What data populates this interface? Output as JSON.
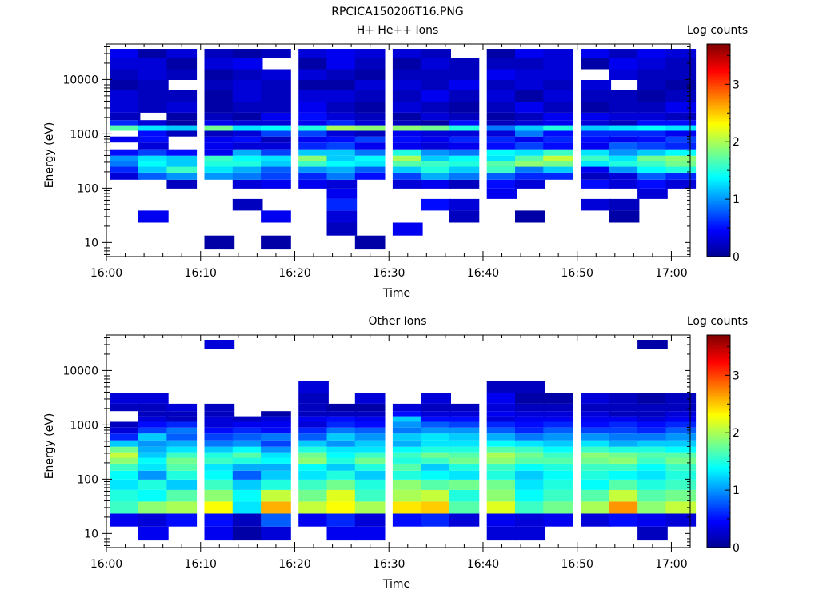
{
  "figure_title": "RPCICA150206T16.PNG",
  "colors": {
    "colormap": [
      "#00008f",
      "#0000ff",
      "#0080ff",
      "#00ffff",
      "#80ff80",
      "#ffff00",
      "#ff8000",
      "#ff0000",
      "#800000"
    ]
  },
  "chart_data": [
    {
      "type": "heatmap",
      "title": "H+ He++ Ions",
      "xlabel": "Time",
      "ylabel": "Energy (eV)",
      "x_ticks": [
        "16:00",
        "16:10",
        "16:20",
        "16:30",
        "16:40",
        "16:50",
        "17:00"
      ],
      "x_range": [
        "16:00",
        "17:02"
      ],
      "y_scale": "log",
      "y_ticks": [
        10,
        100,
        1000,
        10000
      ],
      "y_range": [
        5.5,
        45000
      ],
      "colorbar": {
        "label": "Log counts",
        "ticks": [
          0,
          1,
          2,
          3
        ],
        "range": [
          0,
          3.7
        ]
      },
      "time_bins": [
        "16:02",
        "16:05",
        "16:08",
        "16:12",
        "16:15",
        "16:18",
        "16:22",
        "16:25",
        "16:28",
        "16:32",
        "16:35",
        "16:38",
        "16:42",
        "16:45",
        "16:48",
        "16:52",
        "16:55",
        "16:58",
        "17:01"
      ],
      "energy_bins": [
        10,
        18,
        30,
        50,
        80,
        120,
        170,
        220,
        280,
        350,
        450,
        600,
        800,
        1000,
        1300,
        1600,
        2000,
        3000,
        5000,
        8000,
        12000,
        20000,
        30000
      ],
      "z": [
        [
          null,
          null,
          null,
          null,
          null,
          null,
          0.3,
          0.6,
          0.9,
          1.0,
          0.5,
          null,
          0.4,
          null,
          1.7,
          0.6,
          0.2,
          0.3,
          0.3,
          0.1,
          0.2,
          0.3,
          0.4
        ],
        [
          null,
          null,
          0.4,
          null,
          null,
          null,
          0.8,
          1.2,
          1.4,
          1.3,
          0.7,
          0.3,
          0.5,
          0.5,
          1.3,
          0.3,
          null,
          0.2,
          0.2,
          0.2,
          0.3,
          0.3,
          0.1
        ],
        [
          null,
          null,
          null,
          null,
          null,
          0.2,
          1.0,
          1.6,
          1.2,
          1.2,
          0.5,
          null,
          null,
          0.2,
          1.2,
          0.1,
          0.1,
          0.3,
          0.2,
          null,
          0.2,
          0.1,
          0.3
        ],
        [
          0.1,
          null,
          null,
          null,
          null,
          null,
          1.0,
          1.3,
          1.5,
          1.6,
          0.4,
          0.4,
          0.4,
          0.2,
          1.8,
          0.4,
          0.2,
          0.1,
          0.1,
          0.2,
          0.1,
          0.3,
          0.2
        ],
        [
          null,
          null,
          null,
          0.2,
          null,
          0.3,
          0.9,
          1.1,
          1.5,
          1.4,
          1.1,
          0.3,
          0.5,
          0.3,
          1.3,
          0.3,
          0.1,
          0.2,
          0.3,
          0.3,
          0.2,
          0.4,
          0.1
        ],
        [
          0.1,
          null,
          0.4,
          null,
          null,
          0.4,
          0.7,
          0.8,
          1.2,
          1.3,
          0.7,
          0.3,
          0.2,
          0.7,
          1.4,
          0.3,
          0.4,
          0.2,
          0.2,
          0.2,
          0.3,
          null,
          0.2
        ],
        [
          null,
          null,
          null,
          null,
          null,
          0.4,
          0.6,
          1.0,
          1.6,
          1.9,
          1.2,
          0.6,
          0.4,
          0.7,
          1.5,
          0.4,
          0.5,
          0.4,
          0.3,
          0.1,
          0.3,
          0.1,
          0.3
        ],
        [
          null,
          0.2,
          0.3,
          0.6,
          0.4,
          0.3,
          0.9,
          1.1,
          1.4,
          1.2,
          1.2,
          0.7,
          0.5,
          0.3,
          2.0,
          0.6,
          0.3,
          0.2,
          0.3,
          0.1,
          0.2,
          0.4,
          0.4
        ],
        [
          0.1,
          null,
          null,
          null,
          null,
          null,
          0.5,
          0.8,
          1.3,
          1.4,
          0.9,
          0.4,
          0.7,
          0.2,
          1.9,
          0.3,
          0.2,
          0.1,
          0.2,
          0.3,
          0.1,
          0.2,
          0.3
        ],
        [
          null,
          0.4,
          null,
          null,
          null,
          0.3,
          0.7,
          1.2,
          1.7,
          2.0,
          1.5,
          0.4,
          0.5,
          0.4,
          1.9,
          0.2,
          0.1,
          0.3,
          0.2,
          0.3,
          0.2,
          0.1,
          0.3
        ],
        [
          null,
          null,
          null,
          0.5,
          null,
          0.4,
          1.1,
          1.5,
          1.6,
          1.2,
          1.0,
          0.3,
          0.4,
          0.3,
          1.8,
          0.1,
          0.3,
          0.2,
          0.4,
          0.2,
          0.2,
          0.3,
          0.2
        ],
        [
          null,
          null,
          0.2,
          0.3,
          null,
          0.2,
          0.9,
          1.2,
          1.5,
          1.4,
          0.9,
          0.4,
          0.6,
          0.3,
          1.5,
          0.5,
          0.2,
          0.1,
          0.2,
          0.4,
          0.2,
          0.2,
          null
        ],
        [
          null,
          null,
          null,
          null,
          0.4,
          0.5,
          0.8,
          1.6,
          1.7,
          1.3,
          1.4,
          0.5,
          0.6,
          0.3,
          0.9,
          0.2,
          0.1,
          0.2,
          0.3,
          0.2,
          0.4,
          0.2,
          0.1
        ],
        [
          null,
          null,
          0.1,
          null,
          null,
          0.3,
          0.6,
          0.9,
          1.9,
          1.7,
          1.3,
          0.7,
          0.4,
          0.9,
          1.2,
          0.3,
          0.2,
          0.4,
          0.1,
          0.3,
          0.3,
          0.2,
          0.4
        ],
        [
          null,
          null,
          null,
          null,
          null,
          null,
          0.6,
          1.2,
          1.8,
          2.1,
          1.6,
          0.5,
          0.6,
          0.5,
          1.5,
          0.4,
          0.4,
          0.2,
          0.3,
          0.2,
          0.3,
          0.3,
          0.3
        ],
        [
          null,
          null,
          null,
          0.3,
          null,
          0.5,
          0.2,
          0.4,
          1.3,
          1.6,
          1.3,
          0.4,
          0.5,
          0.6,
          1.2,
          0.3,
          0.4,
          0.1,
          0.2,
          0.3,
          null,
          0.1,
          0.4
        ],
        [
          null,
          null,
          0.1,
          0.2,
          null,
          0.3,
          0.3,
          1.0,
          1.5,
          1.3,
          1.0,
          0.8,
          0.4,
          0.6,
          1.3,
          0.2,
          0.3,
          0.2,
          0.2,
          null,
          0.3,
          0.4,
          0.2
        ],
        [
          null,
          null,
          null,
          null,
          0.3,
          0.5,
          0.8,
          1.4,
          1.6,
          1.8,
          1.2,
          0.7,
          0.5,
          0.6,
          1.4,
          0.5,
          0.3,
          0.2,
          0.1,
          0.2,
          0.2,
          0.3,
          0.4
        ],
        [
          null,
          null,
          null,
          null,
          null,
          0.3,
          0.6,
          1.5,
          1.8,
          1.9,
          1.4,
          0.6,
          0.7,
          0.4,
          1.3,
          0.5,
          0.2,
          0.4,
          0.2,
          0.1,
          0.2,
          0.2,
          0.3
        ]
      ]
    },
    {
      "type": "heatmap",
      "title": "Other Ions",
      "xlabel": "Time",
      "ylabel": "Energy (eV)",
      "x_ticks": [
        "16:00",
        "16:10",
        "16:20",
        "16:30",
        "16:40",
        "16:50",
        "17:00"
      ],
      "x_range": [
        "16:00",
        "17:02"
      ],
      "y_scale": "log",
      "y_ticks": [
        10,
        100,
        1000,
        10000
      ],
      "y_range": [
        5.5,
        45000
      ],
      "colorbar": {
        "label": "Log counts",
        "ticks": [
          0,
          1,
          2,
          3
        ],
        "range": [
          0,
          3.7
        ]
      },
      "time_bins": [
        "16:02",
        "16:05",
        "16:08",
        "16:12",
        "16:15",
        "16:18",
        "16:22",
        "16:25",
        "16:28",
        "16:32",
        "16:35",
        "16:38",
        "16:42",
        "16:45",
        "16:48",
        "16:52",
        "16:55",
        "16:58",
        "17:01"
      ],
      "energy_bins": [
        10,
        18,
        30,
        50,
        80,
        120,
        170,
        220,
        280,
        350,
        450,
        600,
        800,
        1000,
        1300,
        1600,
        2000,
        3000,
        5000,
        8000,
        12000,
        20000,
        30000
      ],
      "z": [
        [
          null,
          0.4,
          1.6,
          1.5,
          1.3,
          1.4,
          1.6,
          1.9,
          2.1,
          1.8,
          1.2,
          0.6,
          0.3,
          0.2,
          null,
          null,
          0.2,
          0.3,
          null,
          null,
          null,
          null,
          null
        ],
        [
          0.4,
          0.3,
          1.9,
          1.4,
          1.5,
          1.0,
          1.3,
          1.4,
          1.2,
          1.1,
          1.0,
          1.2,
          0.7,
          0.5,
          0.3,
          0.2,
          0.2,
          0.3,
          null,
          null,
          null,
          null,
          null
        ],
        [
          null,
          0.5,
          2.0,
          1.7,
          1.2,
          1.5,
          1.7,
          1.8,
          1.6,
          1.3,
          1.1,
          0.8,
          0.9,
          0.6,
          0.2,
          0.2,
          0.3,
          null,
          null,
          null,
          null,
          null,
          null
        ],
        [
          0.4,
          0.5,
          2.3,
          1.9,
          1.6,
          1.4,
          1.3,
          1.6,
          1.5,
          1.2,
          0.9,
          0.7,
          0.5,
          0.3,
          0.3,
          0.2,
          0.2,
          null,
          null,
          null,
          null,
          null,
          0.3
        ],
        [
          0.1,
          0.2,
          1.3,
          1.4,
          1.2,
          0.8,
          1.1,
          1.5,
          1.7,
          1.4,
          1.0,
          0.8,
          0.6,
          0.4,
          0.2,
          null,
          null,
          null,
          null,
          null,
          null,
          null,
          null
        ],
        [
          0.3,
          0.8,
          2.6,
          2.1,
          1.5,
          1.2,
          1.1,
          1.4,
          1.3,
          1.0,
          0.7,
          0.9,
          0.5,
          0.4,
          0.3,
          0.1,
          null,
          null,
          null,
          null,
          null,
          null,
          null
        ],
        [
          null,
          0.4,
          2.1,
          1.8,
          1.6,
          1.3,
          1.4,
          1.9,
          1.8,
          1.5,
          1.2,
          0.8,
          0.6,
          0.3,
          0.4,
          0.2,
          0.2,
          0.2,
          0.3,
          null,
          null,
          null,
          null
        ],
        [
          0.4,
          0.6,
          2.3,
          2.2,
          1.8,
          1.5,
          1.2,
          1.5,
          1.4,
          1.3,
          1.0,
          1.2,
          0.9,
          0.6,
          0.5,
          0.2,
          0.1,
          null,
          null,
          null,
          null,
          null,
          null
        ],
        [
          0.4,
          0.3,
          2.0,
          1.6,
          1.5,
          1.2,
          1.5,
          1.8,
          1.6,
          1.3,
          1.2,
          1.0,
          0.8,
          0.5,
          0.4,
          0.2,
          0.1,
          0.3,
          null,
          null,
          null,
          null,
          null
        ],
        [
          null,
          0.5,
          2.4,
          2.0,
          1.9,
          1.5,
          1.7,
          1.5,
          1.6,
          1.4,
          1.1,
          1.2,
          0.9,
          1.0,
          1.2,
          0.5,
          0.3,
          null,
          null,
          null,
          null,
          null,
          null
        ],
        [
          null,
          0.6,
          2.5,
          2.1,
          1.7,
          1.4,
          1.2,
          1.6,
          1.8,
          1.5,
          1.3,
          1.3,
          1.0,
          0.8,
          0.5,
          0.3,
          0.2,
          0.3,
          null,
          null,
          null,
          null,
          null
        ],
        [
          null,
          0.3,
          1.7,
          1.5,
          1.8,
          1.3,
          1.5,
          1.8,
          1.7,
          1.5,
          1.3,
          1.2,
          1.0,
          0.7,
          0.5,
          0.3,
          0.2,
          null,
          null,
          null,
          null,
          null,
          null
        ],
        [
          0.3,
          0.4,
          2.2,
          1.9,
          1.8,
          1.5,
          1.6,
          1.9,
          2.0,
          1.7,
          1.4,
          1.1,
          0.8,
          0.6,
          0.3,
          0.4,
          0.3,
          0.4,
          0.2,
          null,
          null,
          null,
          null
        ],
        [
          0.3,
          0.3,
          1.6,
          1.4,
          1.3,
          1.2,
          1.4,
          1.7,
          1.8,
          1.6,
          1.3,
          0.9,
          0.6,
          0.5,
          0.4,
          0.3,
          0.2,
          0.1,
          0.2,
          null,
          null,
          null,
          null
        ],
        [
          null,
          0.4,
          1.8,
          1.6,
          1.5,
          1.4,
          1.5,
          1.7,
          1.6,
          1.4,
          1.2,
          1.0,
          0.8,
          0.6,
          0.4,
          0.3,
          0.2,
          0.1,
          null,
          null,
          null,
          null,
          null
        ],
        [
          null,
          0.3,
          2.0,
          1.7,
          1.4,
          1.5,
          1.6,
          1.8,
          1.9,
          1.6,
          1.3,
          1.0,
          0.7,
          0.5,
          0.4,
          0.3,
          0.2,
          0.3,
          null,
          null,
          null,
          null,
          null
        ],
        [
          null,
          0.5,
          2.7,
          2.1,
          1.7,
          1.4,
          1.6,
          1.9,
          1.8,
          1.5,
          1.1,
          0.9,
          0.7,
          0.6,
          0.4,
          0.2,
          0.2,
          0.2,
          null,
          null,
          null,
          null,
          null
        ],
        [
          0.2,
          0.4,
          1.9,
          1.7,
          1.5,
          1.3,
          1.4,
          1.6,
          1.7,
          1.5,
          1.2,
          0.9,
          0.6,
          0.5,
          0.3,
          0.2,
          0.2,
          0.1,
          null,
          null,
          null,
          null,
          0.1
        ],
        [
          null,
          0.3,
          2.1,
          1.8,
          1.6,
          1.5,
          1.6,
          1.8,
          1.7,
          1.4,
          1.2,
          1.0,
          0.8,
          0.6,
          0.4,
          0.3,
          0.2,
          0.2,
          null,
          null,
          null,
          null,
          null
        ]
      ]
    }
  ]
}
